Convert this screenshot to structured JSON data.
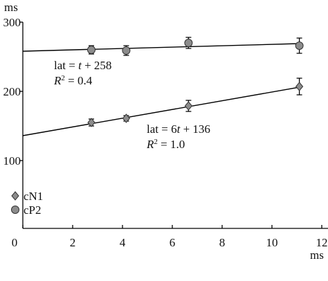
{
  "chart_data": {
    "type": "scatter",
    "y_unit": "ms",
    "x_unit": "ms",
    "xlim": [
      0,
      12
    ],
    "xticks": [
      0,
      2,
      4,
      6,
      8,
      10,
      12
    ],
    "ylim": [
      0,
      300
    ],
    "yticks": [
      100,
      200,
      300
    ],
    "series": [
      {
        "name": "cN1",
        "marker": "diamond",
        "color": "#8c8c8c",
        "x": [
          2.75,
          4.15,
          6.65,
          11.1
        ],
        "values": [
          155,
          161,
          179,
          207
        ],
        "errors": [
          5,
          4,
          8,
          12
        ]
      },
      {
        "name": "cP2",
        "marker": "circle",
        "color": "#8c8c8c",
        "x": [
          2.75,
          4.15,
          6.65,
          11.1
        ],
        "values": [
          260,
          259,
          270,
          266
        ],
        "errors": [
          6,
          7,
          8,
          11
        ]
      }
    ],
    "fit_lines": [
      {
        "x": [
          0,
          11.1
        ],
        "y": [
          258,
          269
        ]
      },
      {
        "x": [
          0,
          11.1
        ],
        "y": [
          136,
          206
        ]
      }
    ],
    "annotations": [
      {
        "lines": [
          [
            "lat = ",
            "t",
            " + 258"
          ],
          [
            "R",
            "2",
            " = 0.4"
          ]
        ]
      },
      {
        "lines": [
          [
            "lat = 6",
            "t",
            " + 136"
          ],
          [
            "R",
            "2",
            " = 1.0"
          ]
        ]
      }
    ]
  }
}
